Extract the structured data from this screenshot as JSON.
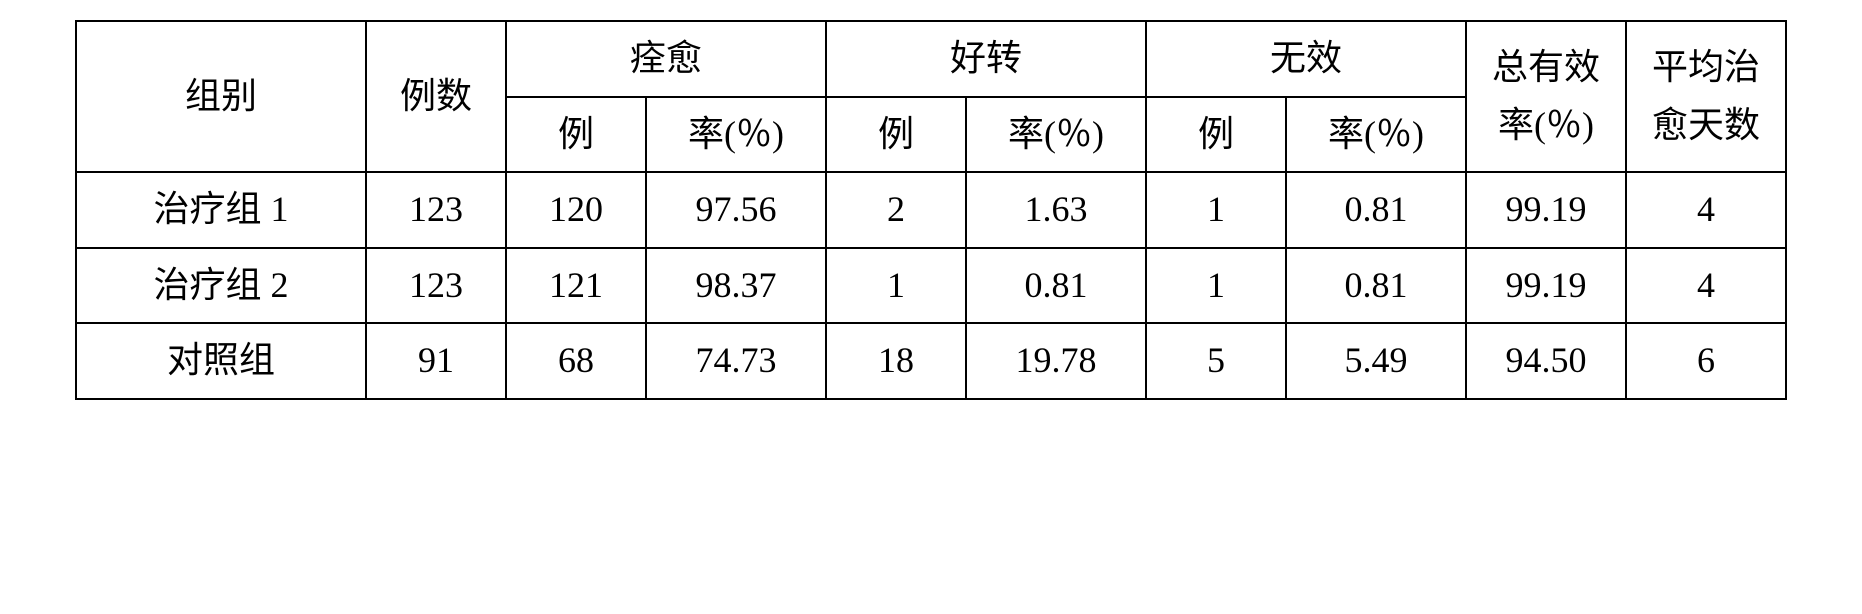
{
  "table": {
    "headers": {
      "group": "组别",
      "count": "例数",
      "cured_group": "痊愈",
      "improved_group": "好转",
      "ineffective_group": "无效",
      "total_rate": "总有效率(％)",
      "avg_days": "平均治愈天数",
      "sub_cases": "例",
      "sub_rate_full": "率(％)",
      "sub_rate_pct": "率(％)"
    },
    "rows": [
      {
        "group": "治疗组 1",
        "count": "123",
        "cured_n": "120",
        "cured_r": "97.56",
        "improved_n": "2",
        "improved_r": "1.63",
        "ineffective_n": "1",
        "ineffective_r": "0.81",
        "total_rate": "99.19",
        "avg_days": "4"
      },
      {
        "group": "治疗组 2",
        "count": "123",
        "cured_n": "121",
        "cured_r": "98.37",
        "improved_n": "1",
        "improved_r": "0.81",
        "ineffective_n": "1",
        "ineffective_r": "0.81",
        "total_rate": "99.19",
        "avg_days": "4"
      },
      {
        "group": "对照组",
        "count": "91",
        "cured_n": "68",
        "cured_r": "74.73",
        "improved_n": "18",
        "improved_r": "19.78",
        "ineffective_n": "5",
        "ineffective_r": "5.49",
        "total_rate": "94.50",
        "avg_days": "6"
      }
    ],
    "styling": {
      "border_color": "#000000",
      "border_width": 2,
      "background_color": "#ffffff",
      "font_size": 36,
      "font_family": "SimSun",
      "text_align": "center",
      "column_widths": {
        "group": 290,
        "count": 140,
        "narrow": 140,
        "rate": 180,
        "total": 160,
        "days": 160
      }
    }
  }
}
